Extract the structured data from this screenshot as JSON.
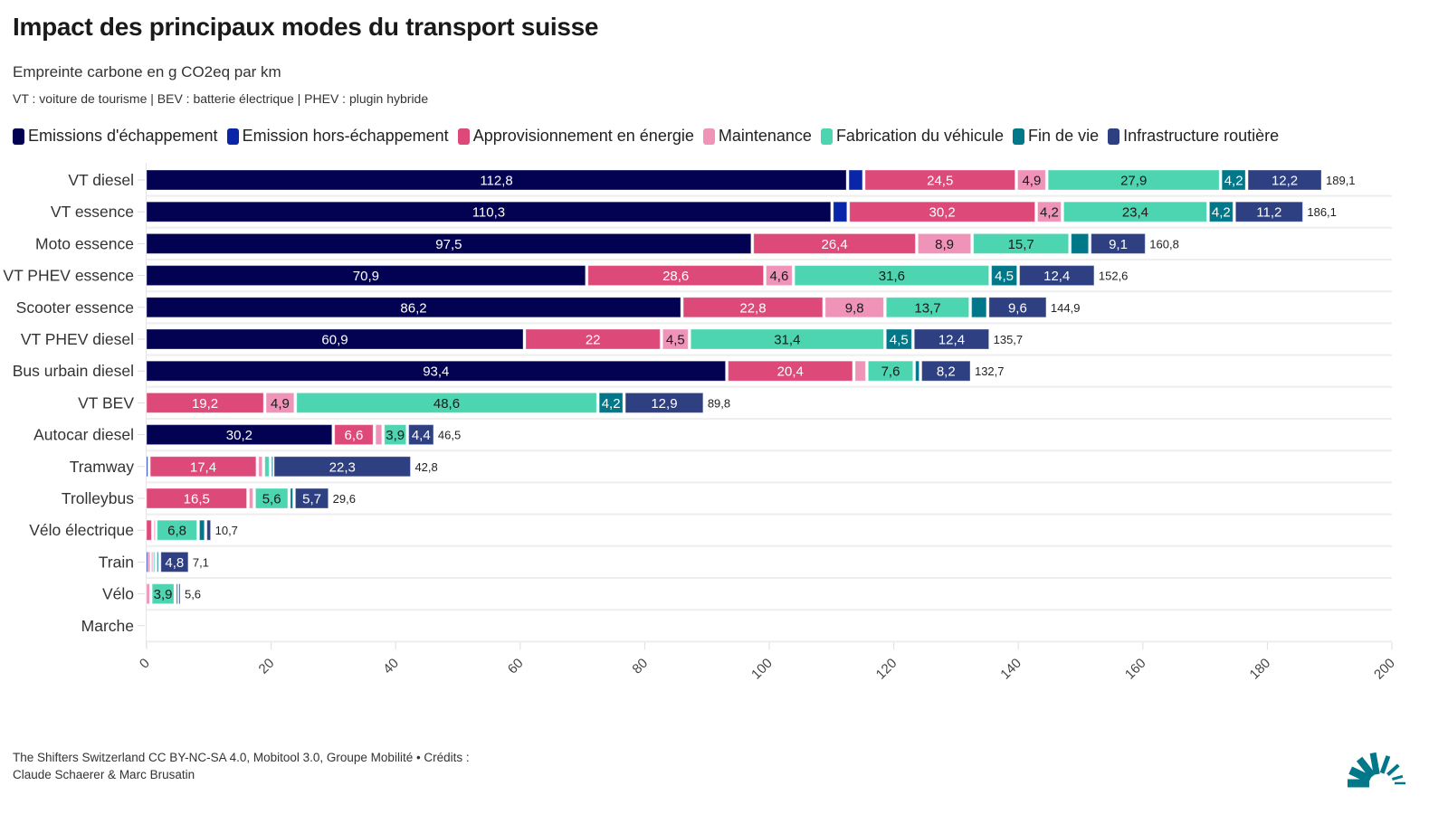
{
  "header": {
    "title": "Impact des principaux modes du transport suisse",
    "subtitle": "Empreinte carbone en g CO2eq par km",
    "description": "VT : voiture de tourisme | BEV : batterie électrique | PHEV : plugin hybride"
  },
  "footer": {
    "source": "The Shifters Switzerland CC BY-NC-SA 4.0, Mobitool 3.0, Groupe Mobilité • Crédits : Claude Schaerer & Marc Brusatin"
  },
  "logo": {
    "icon": "sunburst-logo-icon",
    "color": "#00788a"
  },
  "chart_data": {
    "type": "bar",
    "orientation": "horizontal",
    "stacked": true,
    "title": "Impact des principaux modes du transport suisse",
    "subtitle": "Empreinte carbone en g CO2eq par km",
    "xlabel": "",
    "ylabel": "",
    "xlim": [
      0,
      200
    ],
    "xticks": [
      0,
      20,
      40,
      60,
      80,
      100,
      120,
      140,
      160,
      180,
      200
    ],
    "grid": true,
    "legend_position": "top",
    "decimal_separator": ",",
    "categories": [
      "VT diesel",
      "VT essence",
      "Moto essence",
      "VT PHEV essence",
      "Scooter essence",
      "VT PHEV diesel",
      "Bus urbain diesel",
      "VT BEV",
      "Autocar diesel",
      "Tramway",
      "Trolleybus",
      "Vélo électrique",
      "Train",
      "Vélo",
      "Marche"
    ],
    "totals": [
      189.1,
      186.1,
      160.8,
      152.6,
      144.9,
      135.7,
      132.7,
      89.8,
      46.5,
      42.8,
      29.6,
      10.7,
      7.1,
      5.6,
      0
    ],
    "series": [
      {
        "name": "Emissions d'échappement",
        "color": "#020152",
        "label_color": "#ffffff",
        "values": [
          112.8,
          110.3,
          97.5,
          70.9,
          86.2,
          60.9,
          93.4,
          0,
          30.2,
          0,
          0,
          0,
          0,
          0,
          0
        ]
      },
      {
        "name": "Emission hors-échappement",
        "color": "#0a26a8",
        "label_color": "#ffffff",
        "values": [
          2.6,
          2.6,
          0,
          0,
          0,
          0,
          0,
          0,
          0,
          0.6,
          0,
          0,
          0.3,
          0,
          0
        ]
      },
      {
        "name": "Approvisionnement en énergie",
        "color": "#dd4a79",
        "label_color": "#ffffff",
        "values": [
          24.5,
          30.2,
          26.4,
          28.6,
          22.8,
          22,
          20.4,
          19.2,
          6.6,
          17.4,
          16.5,
          1.2,
          0.5,
          0,
          0
        ]
      },
      {
        "name": "Maintenance",
        "color": "#ef93b9",
        "label_color": "#1a1a1a",
        "values": [
          4.9,
          4.2,
          8.9,
          4.6,
          9.8,
          4.5,
          2.1,
          4.9,
          1.4,
          1.0,
          1.0,
          0.5,
          0.3,
          0.9,
          0
        ]
      },
      {
        "name": "Fabrication du véhicule",
        "color": "#4dd4b1",
        "label_color": "#1a1a1a",
        "values": [
          27.9,
          23.4,
          15.7,
          31.6,
          13.7,
          31.4,
          7.6,
          48.6,
          3.9,
          1.1,
          5.6,
          6.8,
          0.6,
          3.9,
          0
        ]
      },
      {
        "name": "Fin de vie",
        "color": "#007889",
        "label_color": "#ffffff",
        "values": [
          4.2,
          4.2,
          3.2,
          4.5,
          2.8,
          4.5,
          1.0,
          4.2,
          0,
          0.4,
          0.8,
          1.2,
          0.6,
          0.4,
          0
        ]
      },
      {
        "name": "Infrastructure routière",
        "color": "#2e3f82",
        "label_color": "#ffffff",
        "values": [
          12.2,
          11.2,
          9.1,
          12.4,
          9.6,
          12.4,
          8.2,
          12.9,
          4.4,
          22.3,
          5.7,
          1.0,
          4.8,
          0.4,
          0
        ]
      }
    ],
    "min_label_value": 3.5
  }
}
